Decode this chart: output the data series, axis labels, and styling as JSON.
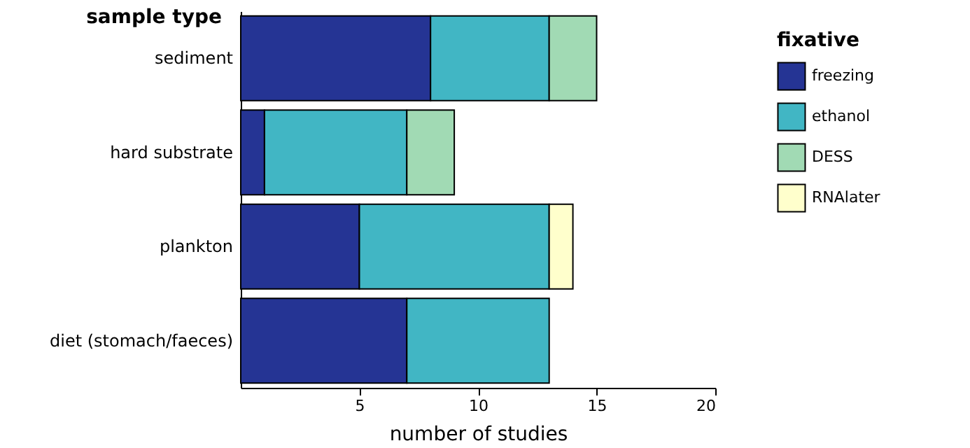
{
  "chart_data": {
    "type": "bar",
    "orientation": "horizontal",
    "stacked": true,
    "xlabel": "number of studies",
    "ylabel": "sample type",
    "legend_title": "fixative",
    "legend": "top right",
    "grid": false,
    "categories": [
      "sediment",
      "hard substrate",
      "plankton",
      "diet (stomach/faeces)"
    ],
    "series": [
      {
        "name": "freezing",
        "color": "#253494",
        "values": [
          8,
          1,
          5,
          7
        ]
      },
      {
        "name": "ethanol",
        "color": "#41b6c4",
        "values": [
          5,
          6,
          8,
          6
        ]
      },
      {
        "name": "DESS",
        "color": "#a1dab4",
        "values": [
          2,
          2,
          null,
          null
        ]
      },
      {
        "name": "RNAlater",
        "color": "#ffffcc",
        "values": [
          null,
          null,
          1,
          null
        ]
      }
    ],
    "xlim": [
      0,
      20
    ],
    "xticks": [
      5,
      10,
      15,
      20
    ]
  }
}
